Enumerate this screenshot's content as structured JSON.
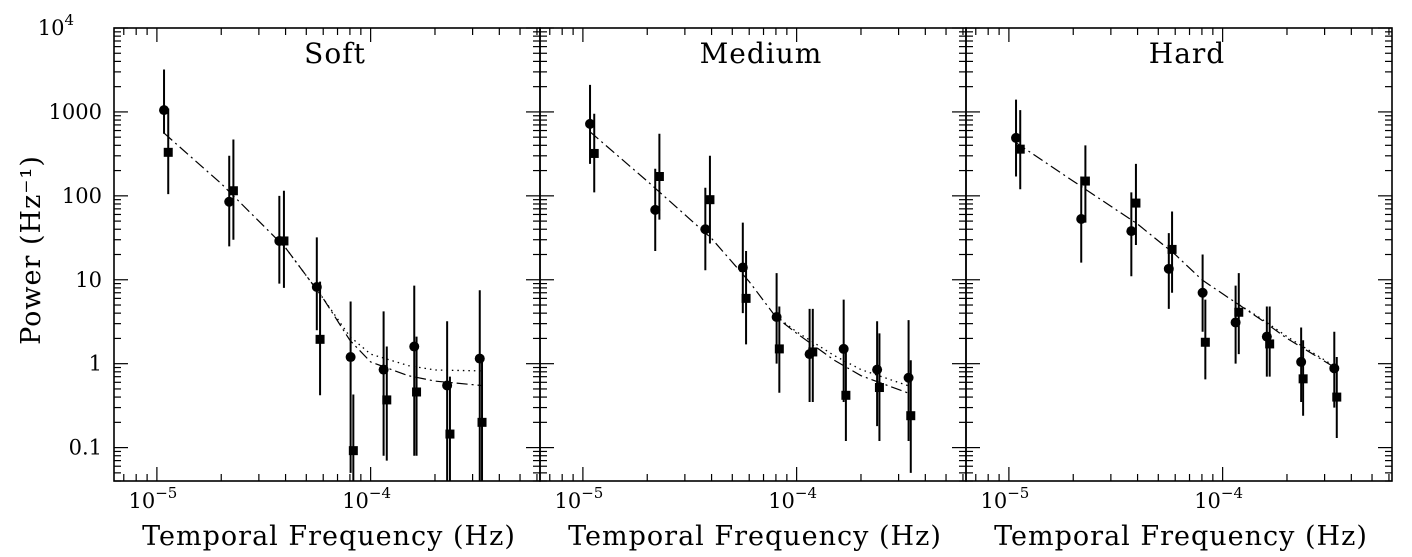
{
  "chart_data": {
    "type": "scatter",
    "xscale": "log",
    "yscale": "log",
    "xlim": [
      6.3e-06,
      0.00062
    ],
    "ylim": [
      0.04,
      10000
    ],
    "ylabel": "Power (Hz⁻¹)",
    "y_tick_labels": [
      {
        "value": 10000,
        "label": "10",
        "sup": "4"
      },
      {
        "value": 1000,
        "label": "1000"
      },
      {
        "value": 100,
        "label": "100"
      },
      {
        "value": 10,
        "label": "10"
      },
      {
        "value": 1,
        "label": "1"
      },
      {
        "value": 0.1,
        "label": "0.1"
      }
    ],
    "panels": [
      {
        "title": "Soft",
        "xlabel": "Temporal Frequency (Hz)",
        "x_tick_labels": [
          {
            "value": 1e-05,
            "label": "10",
            "sup": "−5"
          },
          {
            "value": 0.0001,
            "label": "10",
            "sup": "−4"
          }
        ],
        "series": [
          {
            "marker": "circle",
            "points": [
              {
                "x": 1.08e-05,
                "y": 1050,
                "lo": 550,
                "hi": 3200
              },
              {
                "x": 2.18e-05,
                "y": 85,
                "lo": 25,
                "hi": 300
              },
              {
                "x": 3.74e-05,
                "y": 29,
                "lo": 9,
                "hi": 100
              },
              {
                "x": 5.6e-05,
                "y": 8.2,
                "lo": 2.5,
                "hi": 32
              },
              {
                "x": 8.06e-05,
                "y": 1.2,
                "lo": 0.05,
                "hi": 5.5
              },
              {
                "x": 0.000115,
                "y": 0.85,
                "lo": 0.08,
                "hi": 4.2
              },
              {
                "x": 0.00016,
                "y": 1.6,
                "lo": 0.08,
                "hi": 8.5
              },
              {
                "x": 0.000228,
                "y": 0.55,
                "lo": 0.04,
                "hi": 3.2
              },
              {
                "x": 0.000324,
                "y": 1.15,
                "lo": 0.04,
                "hi": 7.5
              }
            ]
          },
          {
            "marker": "square",
            "points": [
              {
                "x": 1.13e-05,
                "y": 330,
                "lo": 105,
                "hi": 1100
              },
              {
                "x": 2.28e-05,
                "y": 115,
                "lo": 30,
                "hi": 470
              },
              {
                "x": 3.93e-05,
                "y": 29,
                "lo": 8,
                "hi": 115
              },
              {
                "x": 5.8e-05,
                "y": 1.95,
                "lo": 0.42,
                "hi": 9.5
              },
              {
                "x": 8.3e-05,
                "y": 0.092,
                "lo": 0.04,
                "hi": 0.43
              },
              {
                "x": 0.000119,
                "y": 0.37,
                "lo": 0.07,
                "hi": 1.6
              },
              {
                "x": 0.000164,
                "y": 0.46,
                "lo": 0.08,
                "hi": 2.1
              },
              {
                "x": 0.000235,
                "y": 0.145,
                "lo": 0.04,
                "hi": 0.7
              },
              {
                "x": 0.000332,
                "y": 0.2,
                "lo": 0.04,
                "hi": 1.1
              }
            ]
          }
        ],
        "model_dashdot": [
          [
            1.08e-05,
            560
          ],
          [
            2e-05,
            140
          ],
          [
            4e-05,
            24
          ],
          [
            6e-05,
            6
          ],
          [
            8e-05,
            1.9
          ],
          [
            0.0001,
            1.05
          ],
          [
            0.00015,
            0.72
          ],
          [
            0.0002,
            0.62
          ],
          [
            0.00033,
            0.55
          ]
        ],
        "model_dotted": [
          [
            4e-05,
            24
          ],
          [
            6e-05,
            6
          ],
          [
            8e-05,
            2.1
          ],
          [
            0.0001,
            1.3
          ],
          [
            0.00015,
            0.95
          ],
          [
            0.0002,
            0.84
          ],
          [
            0.00033,
            0.82
          ]
        ]
      },
      {
        "title": "Medium",
        "xlabel": "Temporal Frequency (Hz)",
        "x_tick_labels": [
          {
            "value": 1e-05,
            "label": "10",
            "sup": "−5"
          },
          {
            "value": 0.0001,
            "label": "10",
            "sup": "−4"
          }
        ],
        "series": [
          {
            "marker": "circle",
            "points": [
              {
                "x": 1.08e-05,
                "y": 720,
                "lo": 240,
                "hi": 2100
              },
              {
                "x": 2.18e-05,
                "y": 68,
                "lo": 22,
                "hi": 210
              },
              {
                "x": 3.74e-05,
                "y": 40,
                "lo": 13,
                "hi": 125
              },
              {
                "x": 5.6e-05,
                "y": 14,
                "lo": 4,
                "hi": 48
              },
              {
                "x": 8.06e-05,
                "y": 3.6,
                "lo": 1.0,
                "hi": 12
              },
              {
                "x": 0.000115,
                "y": 1.3,
                "lo": 0.35,
                "hi": 4.5
              },
              {
                "x": 0.000166,
                "y": 1.5,
                "lo": 0.35,
                "hi": 5.8
              },
              {
                "x": 0.000238,
                "y": 0.85,
                "lo": 0.18,
                "hi": 3.2
              },
              {
                "x": 0.000334,
                "y": 0.68,
                "lo": 0.12,
                "hi": 3.3
              }
            ]
          },
          {
            "marker": "square",
            "points": [
              {
                "x": 1.13e-05,
                "y": 320,
                "lo": 110,
                "hi": 950
              },
              {
                "x": 2.28e-05,
                "y": 170,
                "lo": 52,
                "hi": 550
              },
              {
                "x": 3.93e-05,
                "y": 90,
                "lo": 27,
                "hi": 300
              },
              {
                "x": 5.8e-05,
                "y": 6,
                "lo": 1.7,
                "hi": 22
              },
              {
                "x": 8.3e-05,
                "y": 1.5,
                "lo": 0.45,
                "hi": 4.8
              },
              {
                "x": 0.000119,
                "y": 1.38,
                "lo": 0.35,
                "hi": 4.5
              },
              {
                "x": 0.00017,
                "y": 0.42,
                "lo": 0.12,
                "hi": 1.6
              },
              {
                "x": 0.000244,
                "y": 0.52,
                "lo": 0.12,
                "hi": 2.3
              },
              {
                "x": 0.000342,
                "y": 0.24,
                "lo": 0.05,
                "hi": 1.1
              }
            ]
          }
        ],
        "model_dashdot": [
          [
            1.08e-05,
            580
          ],
          [
            2e-05,
            150
          ],
          [
            4e-05,
            31
          ],
          [
            6e-05,
            9.5
          ],
          [
            8e-05,
            3.6
          ],
          [
            0.0001,
            2.3
          ],
          [
            0.00015,
            1.1
          ],
          [
            0.0002,
            0.72
          ],
          [
            0.00033,
            0.45
          ]
        ],
        "model_dotted": [
          [
            8e-05,
            3.7
          ],
          [
            0.0001,
            2.4
          ],
          [
            0.00015,
            1.25
          ],
          [
            0.0002,
            0.85
          ],
          [
            0.00033,
            0.55
          ]
        ]
      },
      {
        "title": "Hard",
        "xlabel": "Temporal Frequency (Hz)",
        "x_tick_labels": [
          {
            "value": 1e-05,
            "label": "10",
            "sup": "−5"
          },
          {
            "value": 0.0001,
            "label": "10",
            "sup": "−4"
          }
        ],
        "series": [
          {
            "marker": "circle",
            "points": [
              {
                "x": 1.08e-05,
                "y": 490,
                "lo": 170,
                "hi": 1400
              },
              {
                "x": 2.18e-05,
                "y": 53,
                "lo": 16,
                "hi": 170
              },
              {
                "x": 3.74e-05,
                "y": 38,
                "lo": 11,
                "hi": 110
              },
              {
                "x": 5.6e-05,
                "y": 13.5,
                "lo": 4.5,
                "hi": 36
              },
              {
                "x": 8.06e-05,
                "y": 7,
                "lo": 2.4,
                "hi": 20
              },
              {
                "x": 0.000115,
                "y": 3.1,
                "lo": 1.0,
                "hi": 8.5
              },
              {
                "x": 0.000161,
                "y": 2.1,
                "lo": 0.7,
                "hi": 4.8
              },
              {
                "x": 0.000233,
                "y": 1.05,
                "lo": 0.35,
                "hi": 2.7
              },
              {
                "x": 0.000333,
                "y": 0.88,
                "lo": 0.3,
                "hi": 2.4
              }
            ]
          },
          {
            "marker": "square",
            "points": [
              {
                "x": 1.13e-05,
                "y": 360,
                "lo": 120,
                "hi": 1050
              },
              {
                "x": 2.28e-05,
                "y": 150,
                "lo": 48,
                "hi": 400
              },
              {
                "x": 3.93e-05,
                "y": 82,
                "lo": 26,
                "hi": 240
              },
              {
                "x": 5.8e-05,
                "y": 23,
                "lo": 7,
                "hi": 65
              },
              {
                "x": 8.3e-05,
                "y": 1.8,
                "lo": 0.65,
                "hi": 5.8
              },
              {
                "x": 0.000119,
                "y": 4.1,
                "lo": 1.3,
                "hi": 12
              },
              {
                "x": 0.000166,
                "y": 1.72,
                "lo": 0.7,
                "hi": 4.8
              },
              {
                "x": 0.000238,
                "y": 0.66,
                "lo": 0.24,
                "hi": 1.9
              },
              {
                "x": 0.000342,
                "y": 0.4,
                "lo": 0.13,
                "hi": 1.2
              }
            ]
          }
        ],
        "model_dashdot": [
          [
            1.08e-05,
            430
          ],
          [
            2e-05,
            150
          ],
          [
            4e-05,
            46
          ],
          [
            6e-05,
            20
          ],
          [
            8e-05,
            10
          ],
          [
            0.0001,
            6.8
          ],
          [
            0.00015,
            3.4
          ],
          [
            0.0002,
            2.0
          ],
          [
            0.00033,
            0.92
          ]
        ],
        "model_dotted": [
          [
            0.00012,
            5
          ],
          [
            0.00015,
            3.5
          ],
          [
            0.0002,
            2.1
          ],
          [
            0.00033,
            0.95
          ]
        ]
      }
    ]
  }
}
